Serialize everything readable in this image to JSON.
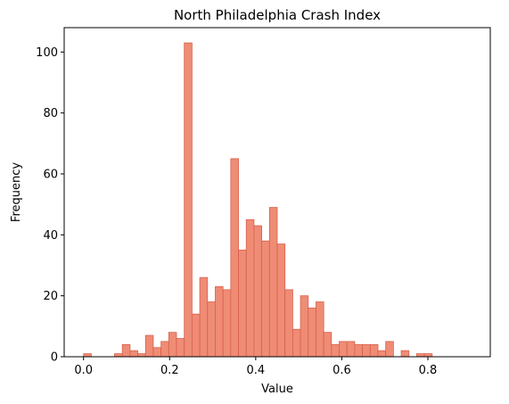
{
  "chart_data": {
    "type": "bar",
    "title": "North Philadelphia Crash Index",
    "xlabel": "Value",
    "ylabel": "Frequency",
    "xlim": [
      -0.045,
      0.945
    ],
    "ylim": [
      0,
      108
    ],
    "xticks": [
      "0.0",
      "0.2",
      "0.4",
      "0.6",
      "0.8"
    ],
    "xtick_values": [
      0.0,
      0.2,
      0.4,
      0.6,
      0.8
    ],
    "yticks": [
      "0",
      "20",
      "40",
      "60",
      "80",
      "100"
    ],
    "ytick_values": [
      0,
      20,
      40,
      60,
      80,
      100
    ],
    "grid": false,
    "bin_start": 0.0,
    "bin_width": 0.018,
    "values": [
      1,
      0,
      0,
      0,
      1,
      4,
      2,
      1,
      7,
      3,
      5,
      8,
      6,
      103,
      14,
      26,
      18,
      23,
      22,
      65,
      35,
      45,
      43,
      38,
      49,
      37,
      22,
      9,
      20,
      16,
      18,
      8,
      4,
      5,
      5,
      4,
      4,
      4,
      2,
      5,
      0,
      2,
      0,
      1,
      1,
      0,
      0,
      0,
      0,
      0
    ],
    "bar_color": "#ef8c76",
    "edge_color": "#d9604a"
  }
}
